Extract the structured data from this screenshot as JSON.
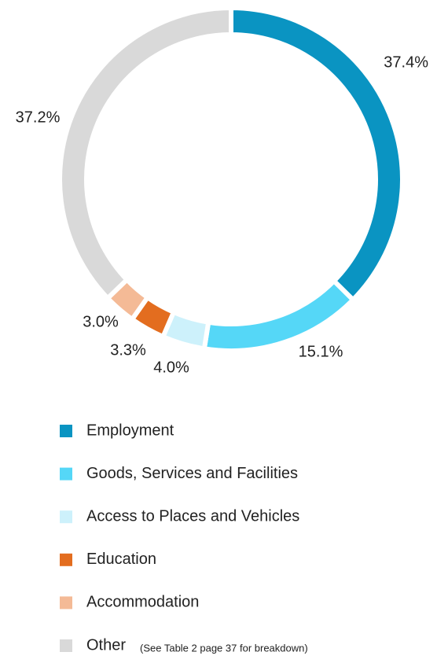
{
  "chart_data": {
    "type": "donut",
    "categories": [
      "Employment",
      "Goods, Services and Facilities",
      "Access to Places and Vehicles",
      "Education",
      "Accommodation",
      "Other"
    ],
    "values": [
      37.4,
      15.1,
      4.0,
      3.3,
      3.0,
      37.2
    ],
    "value_labels": [
      "37.4%",
      "15.1%",
      "4.0%",
      "3.3%",
      "3.0%",
      "37.2%"
    ],
    "colors": [
      "#0a94c2",
      "#55d7f7",
      "#cdf1fb",
      "#e36d1f",
      "#f4ba96",
      "#d9d9d9"
    ],
    "legend_note": "(See Table 2 page 37 for breakdown)"
  }
}
